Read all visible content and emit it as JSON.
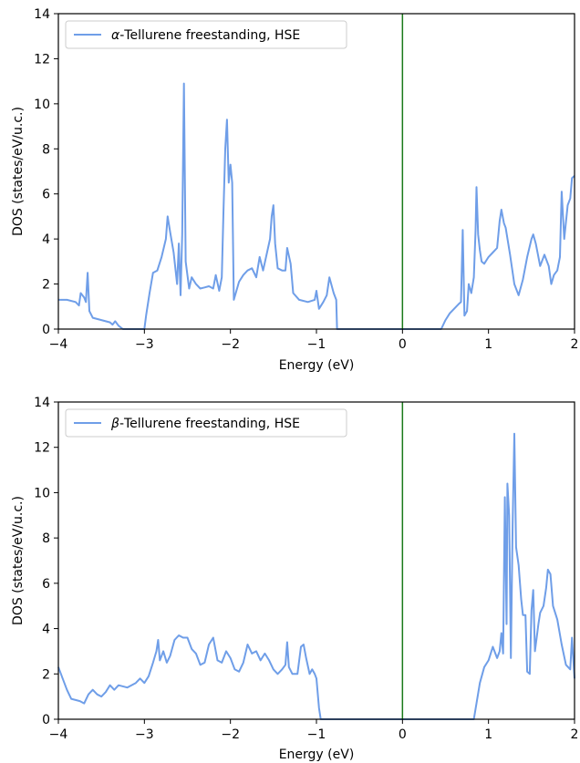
{
  "chart_data": [
    {
      "type": "line",
      "xlabel": "Energy (eV)",
      "ylabel": "DOS (states/eV/u.c.)",
      "xlim": [
        -4,
        2
      ],
      "ylim": [
        0,
        14
      ],
      "xticks": [
        "−4",
        "−3",
        "−2",
        "−1",
        "0",
        "1",
        "2"
      ],
      "yticks": [
        "0",
        "2",
        "4",
        "6",
        "8",
        "10",
        "12",
        "14"
      ],
      "legend": {
        "placement": "top-left",
        "greek": "α",
        "text": "-Tellurene freestanding, HSE"
      },
      "vline": {
        "x": 0,
        "color": "#1a7a1a"
      },
      "series": [
        {
          "color": "#6f9ee8",
          "points": [
            [
              -4.0,
              1.3
            ],
            [
              -3.9,
              1.3
            ],
            [
              -3.8,
              1.2
            ],
            [
              -3.76,
              1.05
            ],
            [
              -3.74,
              1.6
            ],
            [
              -3.7,
              1.4
            ],
            [
              -3.68,
              1.2
            ],
            [
              -3.66,
              2.5
            ],
            [
              -3.64,
              0.8
            ],
            [
              -3.6,
              0.5
            ],
            [
              -3.5,
              0.4
            ],
            [
              -3.45,
              0.35
            ],
            [
              -3.4,
              0.3
            ],
            [
              -3.37,
              0.2
            ],
            [
              -3.34,
              0.35
            ],
            [
              -3.3,
              0.15
            ],
            [
              -3.25,
              0.0
            ],
            [
              -3.0,
              0.0
            ],
            [
              -2.98,
              0.6
            ],
            [
              -2.94,
              1.6
            ],
            [
              -2.9,
              2.5
            ],
            [
              -2.85,
              2.6
            ],
            [
              -2.8,
              3.2
            ],
            [
              -2.75,
              4.0
            ],
            [
              -2.73,
              5.0
            ],
            [
              -2.7,
              4.3
            ],
            [
              -2.66,
              3.4
            ],
            [
              -2.62,
              2.0
            ],
            [
              -2.6,
              3.8
            ],
            [
              -2.58,
              1.5
            ],
            [
              -2.56,
              4.2
            ],
            [
              -2.54,
              10.9
            ],
            [
              -2.52,
              3.0
            ],
            [
              -2.48,
              1.8
            ],
            [
              -2.45,
              2.3
            ],
            [
              -2.4,
              2.0
            ],
            [
              -2.35,
              1.8
            ],
            [
              -2.3,
              1.85
            ],
            [
              -2.25,
              1.9
            ],
            [
              -2.2,
              1.8
            ],
            [
              -2.17,
              2.4
            ],
            [
              -2.13,
              1.7
            ],
            [
              -2.1,
              2.3
            ],
            [
              -2.08,
              5.3
            ],
            [
              -2.06,
              8.0
            ],
            [
              -2.04,
              9.3
            ],
            [
              -2.02,
              6.5
            ],
            [
              -2.0,
              7.3
            ],
            [
              -1.98,
              6.5
            ],
            [
              -1.96,
              1.3
            ],
            [
              -1.9,
              2.1
            ],
            [
              -1.85,
              2.4
            ],
            [
              -1.8,
              2.6
            ],
            [
              -1.75,
              2.7
            ],
            [
              -1.7,
              2.3
            ],
            [
              -1.66,
              3.2
            ],
            [
              -1.62,
              2.6
            ],
            [
              -1.58,
              3.3
            ],
            [
              -1.54,
              4.0
            ],
            [
              -1.52,
              5.0
            ],
            [
              -1.5,
              5.5
            ],
            [
              -1.48,
              3.8
            ],
            [
              -1.45,
              2.7
            ],
            [
              -1.4,
              2.6
            ],
            [
              -1.36,
              2.6
            ],
            [
              -1.34,
              3.6
            ],
            [
              -1.3,
              2.9
            ],
            [
              -1.27,
              1.6
            ],
            [
              -1.2,
              1.3
            ],
            [
              -1.1,
              1.2
            ],
            [
              -1.02,
              1.3
            ],
            [
              -1.0,
              1.7
            ],
            [
              -0.97,
              0.9
            ],
            [
              -0.92,
              1.2
            ],
            [
              -0.88,
              1.5
            ],
            [
              -0.85,
              2.3
            ],
            [
              -0.8,
              1.6
            ],
            [
              -0.77,
              1.3
            ],
            [
              -0.76,
              0.0
            ],
            [
              0.45,
              0.0
            ],
            [
              0.5,
              0.4
            ],
            [
              0.55,
              0.7
            ],
            [
              0.6,
              0.9
            ],
            [
              0.65,
              1.1
            ],
            [
              0.68,
              1.2
            ],
            [
              0.7,
              4.4
            ],
            [
              0.72,
              0.6
            ],
            [
              0.75,
              0.8
            ],
            [
              0.77,
              2.0
            ],
            [
              0.8,
              1.6
            ],
            [
              0.83,
              2.3
            ],
            [
              0.85,
              4.4
            ],
            [
              0.86,
              6.3
            ],
            [
              0.88,
              4.2
            ],
            [
              0.9,
              3.5
            ],
            [
              0.92,
              3.0
            ],
            [
              0.95,
              2.9
            ],
            [
              1.0,
              3.2
            ],
            [
              1.05,
              3.4
            ],
            [
              1.1,
              3.6
            ],
            [
              1.13,
              4.8
            ],
            [
              1.15,
              5.3
            ],
            [
              1.18,
              4.7
            ],
            [
              1.2,
              4.5
            ],
            [
              1.25,
              3.3
            ],
            [
              1.3,
              2.0
            ],
            [
              1.35,
              1.5
            ],
            [
              1.4,
              2.2
            ],
            [
              1.45,
              3.2
            ],
            [
              1.5,
              4.0
            ],
            [
              1.52,
              4.2
            ],
            [
              1.55,
              3.8
            ],
            [
              1.6,
              2.8
            ],
            [
              1.65,
              3.3
            ],
            [
              1.7,
              2.8
            ],
            [
              1.73,
              2.0
            ],
            [
              1.76,
              2.4
            ],
            [
              1.8,
              2.6
            ],
            [
              1.83,
              3.2
            ],
            [
              1.85,
              6.1
            ],
            [
              1.88,
              4.0
            ],
            [
              1.92,
              5.5
            ],
            [
              1.95,
              5.8
            ],
            [
              1.97,
              6.7
            ],
            [
              2.0,
              6.8
            ]
          ]
        }
      ]
    },
    {
      "type": "line",
      "xlabel": "Energy (eV)",
      "ylabel": "DOS (states/eV/u.c.)",
      "xlim": [
        -4,
        2
      ],
      "ylim": [
        0,
        14
      ],
      "xticks": [
        "−4",
        "−3",
        "−2",
        "−1",
        "0",
        "1",
        "2"
      ],
      "yticks": [
        "0",
        "2",
        "4",
        "6",
        "8",
        "10",
        "12",
        "14"
      ],
      "legend": {
        "placement": "top-left",
        "greek": "β",
        "text": "-Tellurene freestanding, HSE"
      },
      "vline": {
        "x": 0,
        "color": "#1a7a1a"
      },
      "series": [
        {
          "color": "#6f9ee8",
          "points": [
            [
              -4.0,
              2.3
            ],
            [
              -3.95,
              1.8
            ],
            [
              -3.9,
              1.3
            ],
            [
              -3.85,
              0.9
            ],
            [
              -3.8,
              0.85
            ],
            [
              -3.75,
              0.8
            ],
            [
              -3.7,
              0.7
            ],
            [
              -3.65,
              1.1
            ],
            [
              -3.6,
              1.3
            ],
            [
              -3.55,
              1.1
            ],
            [
              -3.5,
              1.0
            ],
            [
              -3.45,
              1.2
            ],
            [
              -3.4,
              1.5
            ],
            [
              -3.35,
              1.3
            ],
            [
              -3.3,
              1.5
            ],
            [
              -3.2,
              1.4
            ],
            [
              -3.1,
              1.6
            ],
            [
              -3.05,
              1.8
            ],
            [
              -3.0,
              1.6
            ],
            [
              -2.95,
              1.9
            ],
            [
              -2.9,
              2.5
            ],
            [
              -2.86,
              3.0
            ],
            [
              -2.84,
              3.5
            ],
            [
              -2.82,
              2.6
            ],
            [
              -2.78,
              3.0
            ],
            [
              -2.74,
              2.5
            ],
            [
              -2.7,
              2.8
            ],
            [
              -2.65,
              3.5
            ],
            [
              -2.6,
              3.7
            ],
            [
              -2.55,
              3.6
            ],
            [
              -2.5,
              3.6
            ],
            [
              -2.45,
              3.1
            ],
            [
              -2.4,
              2.9
            ],
            [
              -2.35,
              2.4
            ],
            [
              -2.3,
              2.5
            ],
            [
              -2.25,
              3.3
            ],
            [
              -2.2,
              3.6
            ],
            [
              -2.15,
              2.6
            ],
            [
              -2.1,
              2.5
            ],
            [
              -2.05,
              3.0
            ],
            [
              -2.0,
              2.7
            ],
            [
              -1.95,
              2.2
            ],
            [
              -1.9,
              2.1
            ],
            [
              -1.85,
              2.5
            ],
            [
              -1.8,
              3.3
            ],
            [
              -1.75,
              2.9
            ],
            [
              -1.7,
              3.0
            ],
            [
              -1.65,
              2.6
            ],
            [
              -1.6,
              2.9
            ],
            [
              -1.55,
              2.6
            ],
            [
              -1.5,
              2.2
            ],
            [
              -1.45,
              2.0
            ],
            [
              -1.4,
              2.2
            ],
            [
              -1.36,
              2.4
            ],
            [
              -1.34,
              3.4
            ],
            [
              -1.32,
              2.3
            ],
            [
              -1.28,
              2.0
            ],
            [
              -1.22,
              2.0
            ],
            [
              -1.18,
              3.2
            ],
            [
              -1.15,
              3.3
            ],
            [
              -1.12,
              2.7
            ],
            [
              -1.08,
              2.0
            ],
            [
              -1.05,
              2.2
            ],
            [
              -1.02,
              2.0
            ],
            [
              -1.0,
              1.8
            ],
            [
              -0.97,
              0.5
            ],
            [
              -0.95,
              0.0
            ],
            [
              0.83,
              0.0
            ],
            [
              0.86,
              0.7
            ],
            [
              0.9,
              1.6
            ],
            [
              0.95,
              2.3
            ],
            [
              1.0,
              2.6
            ],
            [
              1.05,
              3.2
            ],
            [
              1.1,
              2.7
            ],
            [
              1.13,
              3.0
            ],
            [
              1.15,
              3.8
            ],
            [
              1.17,
              2.9
            ],
            [
              1.19,
              9.8
            ],
            [
              1.21,
              4.2
            ],
            [
              1.22,
              10.4
            ],
            [
              1.24,
              9.0
            ],
            [
              1.26,
              2.7
            ],
            [
              1.28,
              8.5
            ],
            [
              1.3,
              12.6
            ],
            [
              1.32,
              7.6
            ],
            [
              1.35,
              6.8
            ],
            [
              1.38,
              5.3
            ],
            [
              1.4,
              4.6
            ],
            [
              1.43,
              4.6
            ],
            [
              1.45,
              2.1
            ],
            [
              1.48,
              2.0
            ],
            [
              1.5,
              4.8
            ],
            [
              1.52,
              5.7
            ],
            [
              1.54,
              3.0
            ],
            [
              1.58,
              4.2
            ],
            [
              1.6,
              4.7
            ],
            [
              1.64,
              5.0
            ],
            [
              1.67,
              5.8
            ],
            [
              1.69,
              6.6
            ],
            [
              1.72,
              6.4
            ],
            [
              1.75,
              5.0
            ],
            [
              1.8,
              4.4
            ],
            [
              1.85,
              3.3
            ],
            [
              1.9,
              2.4
            ],
            [
              1.95,
              2.2
            ],
            [
              1.97,
              3.6
            ],
            [
              2.0,
              1.8
            ]
          ]
        }
      ]
    }
  ]
}
